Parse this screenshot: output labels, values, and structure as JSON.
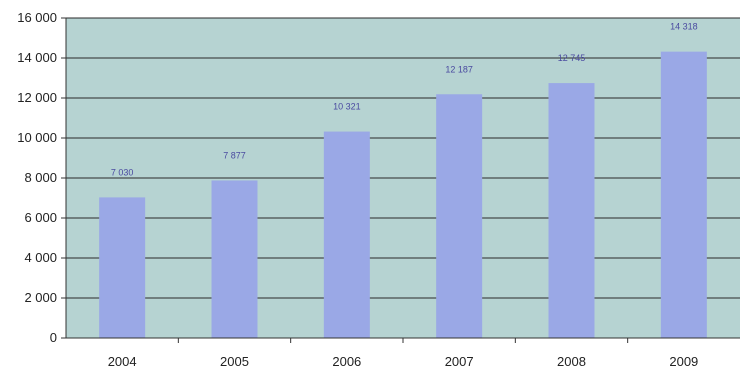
{
  "chart_data": {
    "type": "bar",
    "title": "",
    "xlabel": "",
    "ylabel": "",
    "categories": [
      "2004",
      "2005",
      "2006",
      "2007",
      "2008",
      "2009"
    ],
    "values": [
      7030,
      7877,
      10321,
      12187,
      12745,
      14318
    ],
    "data_labels": [
      "7 030",
      "7 877",
      "10 321",
      "12 187",
      "12 745",
      "14 318"
    ],
    "ylim": [
      0,
      16000
    ],
    "y_ticks": [
      {
        "value": 0,
        "label": "0"
      },
      {
        "value": 2000,
        "label": "2 000"
      },
      {
        "value": 4000,
        "label": "4 000"
      },
      {
        "value": 6000,
        "label": "6 000"
      },
      {
        "value": 8000,
        "label": "8 000"
      },
      {
        "value": 10000,
        "label": "10 000"
      },
      {
        "value": 12000,
        "label": "12 000"
      },
      {
        "value": 14000,
        "label": "14 000"
      },
      {
        "value": 16000,
        "label": "16 000"
      }
    ],
    "grid": true,
    "legend": "none",
    "colors": {
      "bar": "#9aa8e6",
      "plot_background": "#b6d3d2",
      "gridline": "#2a2a2a",
      "axis": "#333333",
      "data_label": "#4a4aa0"
    }
  }
}
